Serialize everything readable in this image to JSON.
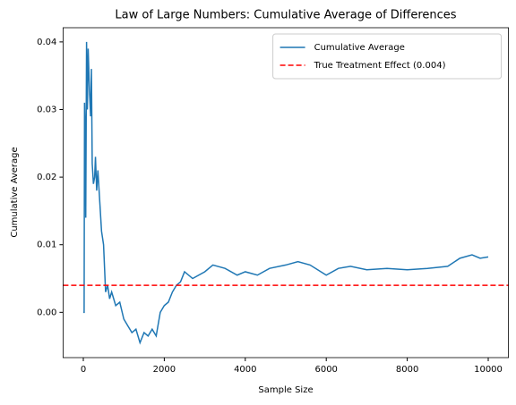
{
  "chart_data": {
    "type": "line",
    "title": "Law of Large Numbers: Cumulative Average of Differences",
    "x_label": "Sample Size",
    "y_label": "Cumulative Average",
    "x": [
      1,
      20,
      30,
      50,
      60,
      80,
      100,
      120,
      150,
      180,
      200,
      220,
      250,
      280,
      300,
      330,
      360,
      400,
      450,
      500,
      550,
      600,
      650,
      700,
      800,
      900,
      1000,
      1100,
      1200,
      1300,
      1400,
      1500,
      1600,
      1700,
      1800,
      1900,
      2000,
      2100,
      2200,
      2300,
      2400,
      2500,
      2700,
      3000,
      3200,
      3500,
      3800,
      4000,
      4300,
      4600,
      5000,
      5300,
      5600,
      6000,
      6300,
      6600,
      7000,
      7500,
      8000,
      8500,
      9000,
      9300,
      9600,
      9800,
      10000
    ],
    "series": [
      {
        "name": "Cumulative Average",
        "color": "#1f77b4",
        "values": [
          0.0,
          0.0,
          0.031,
          0.026,
          0.014,
          0.04,
          0.03,
          0.039,
          0.033,
          0.029,
          0.036,
          0.022,
          0.019,
          0.02,
          0.023,
          0.018,
          0.021,
          0.017,
          0.012,
          0.01,
          0.003,
          0.004,
          0.002,
          0.003,
          0.001,
          0.0015,
          -0.001,
          -0.002,
          -0.003,
          -0.0025,
          -0.0045,
          -0.003,
          -0.0035,
          -0.0025,
          -0.0035,
          0.0,
          0.001,
          0.0015,
          0.003,
          0.004,
          0.0045,
          0.006,
          0.005,
          0.006,
          0.007,
          0.0065,
          0.0055,
          0.006,
          0.0055,
          0.0065,
          0.007,
          0.0075,
          0.007,
          0.0055,
          0.0065,
          0.0068,
          0.0063,
          0.0065,
          0.0063,
          0.0065,
          0.0068,
          0.008,
          0.0085,
          0.008,
          0.0082
        ]
      }
    ],
    "reference_line": {
      "name": "True Treatment Effect (0.004)",
      "value": 0.004,
      "color": "#ff0000",
      "dashed": true
    },
    "xlim": [
      -500,
      10500
    ],
    "xticks": [
      0,
      2000,
      4000,
      6000,
      8000,
      10000
    ],
    "ylim": [
      -0.0067,
      0.0421
    ],
    "yticks": [
      {
        "value": 0,
        "label": "0.00"
      },
      {
        "value": 0.01,
        "label": "0.01"
      },
      {
        "value": 0.02,
        "label": "0.02"
      },
      {
        "value": 0.03,
        "label": "0.03"
      },
      {
        "value": 0.04,
        "label": "0.04"
      }
    ],
    "legend": "upper right",
    "grid": false
  }
}
